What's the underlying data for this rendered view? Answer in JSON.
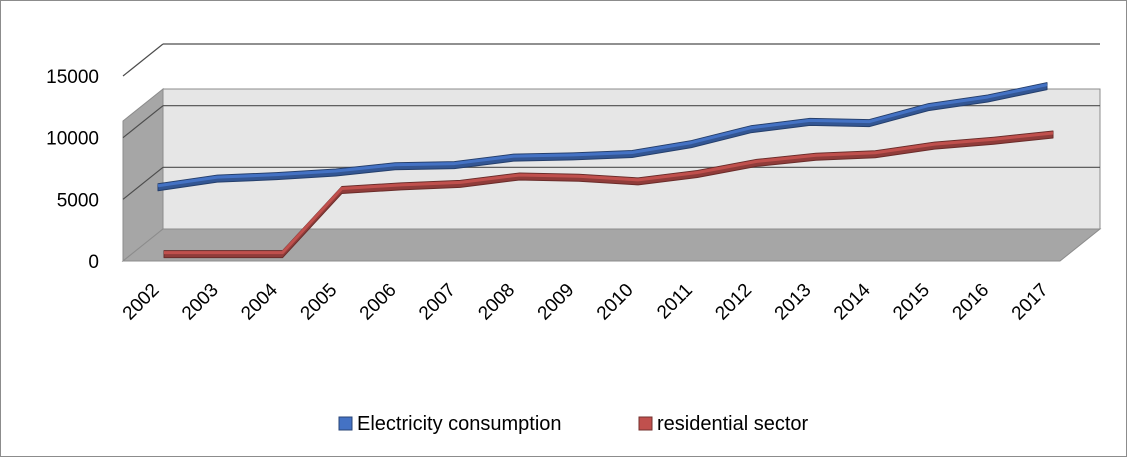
{
  "chart_data": {
    "type": "line",
    "view": "3d",
    "categories": [
      "2002",
      "2003",
      "2004",
      "2005",
      "2006",
      "2007",
      "2008",
      "2009",
      "2010",
      "2011",
      "2012",
      "2013",
      "2014",
      "2015",
      "2016",
      "2017"
    ],
    "series": [
      {
        "name": "Electricity consumption",
        "color": "#4472c4",
        "values": [
          6100,
          6800,
          7000,
          7300,
          7800,
          7900,
          8500,
          8600,
          8800,
          9600,
          10800,
          11400,
          11300,
          12600,
          13300,
          14300
        ]
      },
      {
        "name": "residential sector",
        "color": "#c0504d",
        "values": [
          1000,
          1000,
          1000,
          6200,
          6500,
          6700,
          7300,
          7200,
          6900,
          7500,
          8400,
          8900,
          9100,
          9800,
          10200,
          10700
        ]
      }
    ],
    "y_axis": {
      "min": 0,
      "max": 15000,
      "ticks": [
        "0",
        "5000",
        "10000",
        "15000"
      ]
    },
    "gridlines": true,
    "legend_position": "bottom"
  }
}
